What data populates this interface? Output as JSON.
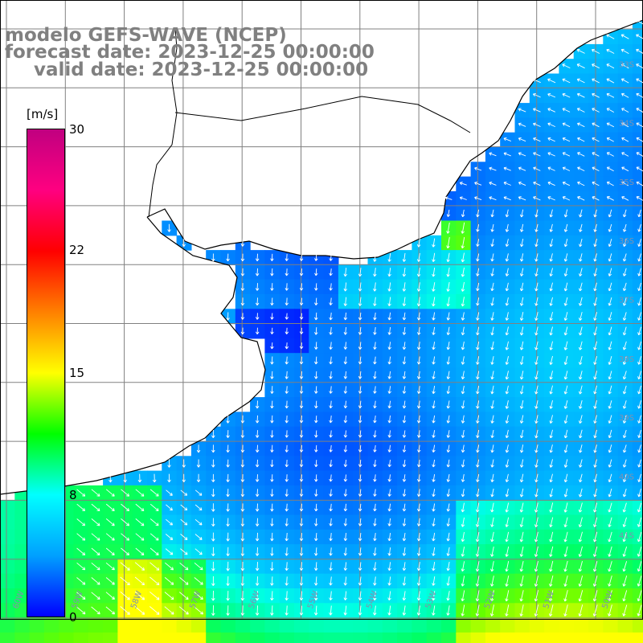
{
  "title": {
    "line1": "modelo GEFS-WAVE (NCEP)",
    "line2": "forecast date: 2023-12-25 00:00:00",
    "line3": "valid date: 2023-12-25 00:00:00"
  },
  "colorbar": {
    "unit": "[m/s]",
    "ticks": [
      "30",
      "22",
      "15",
      "8",
      "0"
    ],
    "min": 0,
    "max": 30,
    "colors": [
      "#0000ff",
      "#00a0ff",
      "#00ffff",
      "#00ff00",
      "#ffff00",
      "#ff8000",
      "#ff0000",
      "#ff0080",
      "#c00080"
    ]
  },
  "lat_labels": [
    "33S",
    "34S",
    "35S",
    "36S",
    "37S",
    "38S",
    "39S",
    "40S",
    "41S"
  ],
  "lon_labels": [
    "60W",
    "59W",
    "58W",
    "57W",
    "56W",
    "55W",
    "54W",
    "53W",
    "52W",
    "51W",
    "50W"
  ],
  "colors": {
    "land": "#ffffff",
    "coast": "#000000",
    "grid": "#808080",
    "arrow": "#ffffff",
    "title": "#808080"
  }
}
